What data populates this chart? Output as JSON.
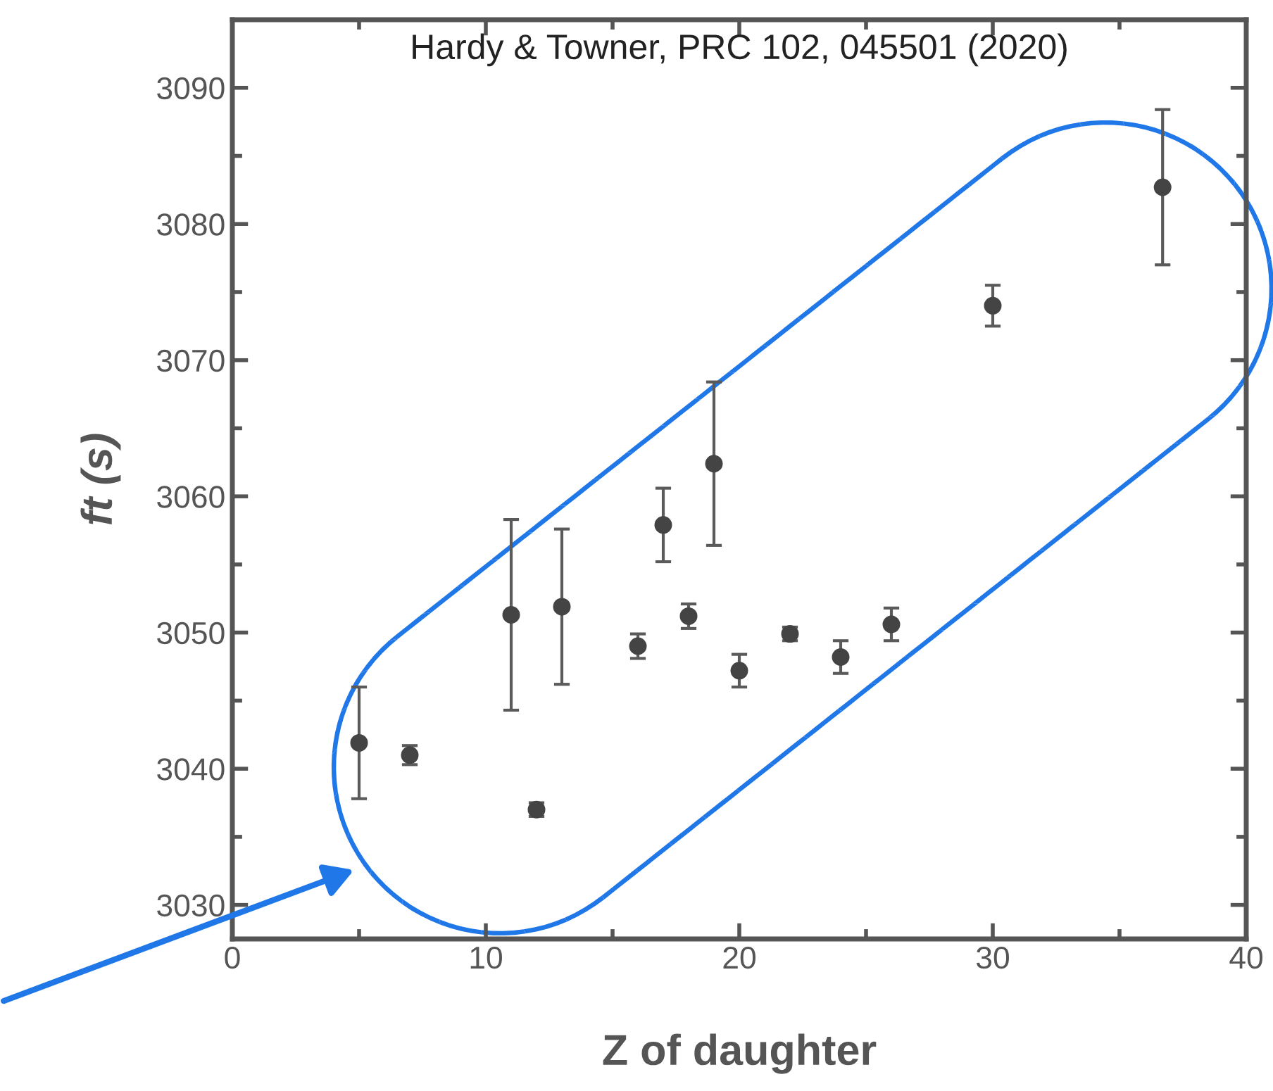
{
  "chart_data": {
    "type": "scatter",
    "x": [
      5,
      7,
      11,
      12,
      13,
      16,
      17,
      18,
      19,
      20,
      22,
      24,
      26,
      30,
      36.7
    ],
    "values": [
      3041.9,
      3041.0,
      3051.3,
      3037.0,
      3051.9,
      3049.0,
      3057.9,
      3051.2,
      3062.4,
      3047.2,
      3049.9,
      3048.2,
      3050.6,
      3074.0,
      3082.7
    ],
    "errors": [
      4.1,
      0.7,
      7.0,
      0.5,
      5.7,
      0.9,
      2.7,
      0.9,
      6.0,
      1.2,
      0.5,
      1.2,
      1.2,
      1.5,
      5.7
    ],
    "color": "#444444",
    "marker": "circle",
    "xlabel": "Z of daughter",
    "ylabel": "ft (s)",
    "annotations": [
      "Hardy & Towner, PRC 102, 045501 (2020)"
    ],
    "xlim": [
      0,
      40
    ],
    "xticks": [
      0,
      10,
      20,
      30,
      40
    ],
    "ylim": [
      3027.5,
      3095
    ],
    "yticks": [
      3030,
      3040,
      3050,
      3060,
      3070,
      3080,
      3090
    ],
    "grid": false
  }
}
